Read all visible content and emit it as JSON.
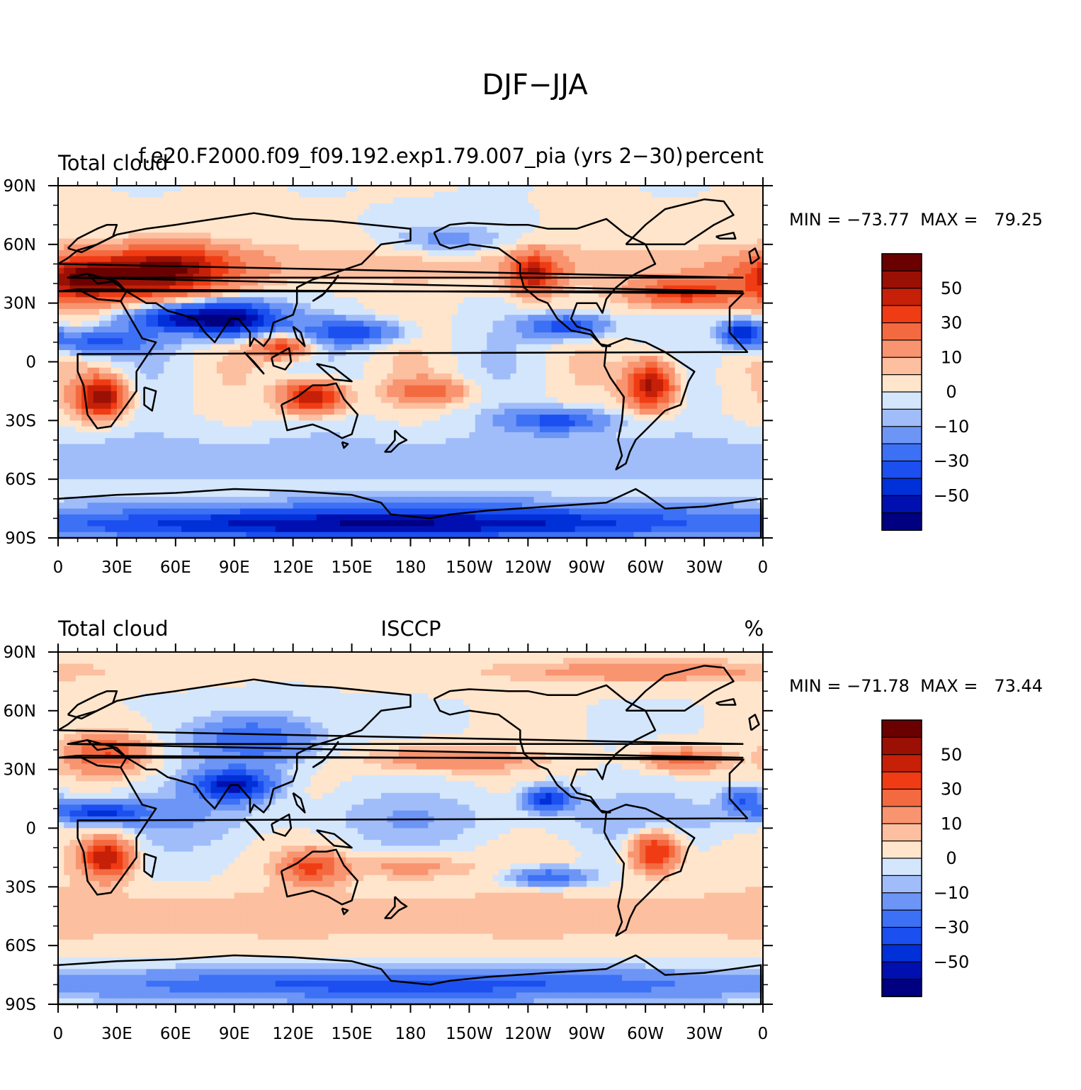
{
  "figure": {
    "title": "DJF−JJA"
  },
  "colorbar": {
    "colors": [
      "#000080",
      "#0010b0",
      "#0030d8",
      "#1c4ff0",
      "#3c70f5",
      "#6c95f6",
      "#a0bdfa",
      "#d4e6fc",
      "#ffe5cc",
      "#fcbf9f",
      "#f89470",
      "#f46a40",
      "#f03c14",
      "#c62008",
      "#9a1004",
      "#6b0000"
    ],
    "tick_labels": [
      "50",
      "30",
      "10",
      "0",
      "−10",
      "−30",
      "−50"
    ]
  },
  "chart_data": [
    {
      "type": "heatmap",
      "title_left": "Total cloud",
      "title_center": "f.e20.F2000.f09_f09.192.exp1.79.007_pia (yrs 2−30)",
      "title_right": "percent",
      "stats_text": "MIN = −73.77  MAX =   79.25",
      "min": -73.77,
      "max": 79.25,
      "xticks": [
        "0",
        "30E",
        "60E",
        "90E",
        "120E",
        "150E",
        "180",
        "150W",
        "120W",
        "90W",
        "60W",
        "30W",
        "0"
      ],
      "yticks": [
        "90N",
        "60N",
        "30N",
        "0",
        "30S",
        "60S",
        "90S"
      ],
      "xlim": [
        0,
        360
      ],
      "ylim": [
        -90,
        90
      ],
      "contour_levels": [
        -60,
        -50,
        -40,
        -30,
        -20,
        -10,
        -5,
        0,
        5,
        10,
        20,
        30,
        40,
        50,
        60
      ],
      "anomalies": [
        {
          "lon": 40,
          "lat": 42,
          "value": 45,
          "width": 40,
          "height": 12
        },
        {
          "lon": 10,
          "lat": 42,
          "value": 35,
          "width": 18,
          "height": 10
        },
        {
          "lon": 60,
          "lat": 50,
          "value": 30,
          "width": 30,
          "height": 10
        },
        {
          "lon": 90,
          "lat": 22,
          "value": -60,
          "width": 25,
          "height": 9
        },
        {
          "lon": 60,
          "lat": 22,
          "value": -40,
          "width": 25,
          "height": 7
        },
        {
          "lon": 20,
          "lat": 10,
          "value": -35,
          "width": 25,
          "height": 6
        },
        {
          "lon": 22,
          "lat": -18,
          "value": 60,
          "width": 12,
          "height": 10
        },
        {
          "lon": 130,
          "lat": -18,
          "value": 55,
          "width": 15,
          "height": 8
        },
        {
          "lon": 150,
          "lat": 15,
          "value": -35,
          "width": 25,
          "height": 6
        },
        {
          "lon": 243,
          "lat": 45,
          "value": 45,
          "width": 12,
          "height": 10
        },
        {
          "lon": 320,
          "lat": 35,
          "value": 40,
          "width": 25,
          "height": 7
        },
        {
          "lon": 303,
          "lat": -12,
          "value": 55,
          "width": 12,
          "height": 12
        },
        {
          "lon": 260,
          "lat": 18,
          "value": -40,
          "width": 20,
          "height": 6
        },
        {
          "lon": 255,
          "lat": -30,
          "value": -35,
          "width": 25,
          "height": 6
        },
        {
          "lon": 190,
          "lat": -15,
          "value": 25,
          "width": 20,
          "height": 6
        },
        {
          "lon": 180,
          "lat": -80,
          "value": -40,
          "width": 180,
          "height": 8
        },
        {
          "lon": 150,
          "lat": -85,
          "value": -30,
          "width": 180,
          "height": 6
        },
        {
          "lon": 200,
          "lat": 62,
          "value": -15,
          "width": 30,
          "height": 8
        },
        {
          "lon": 350,
          "lat": 15,
          "value": -50,
          "width": 10,
          "height": 6
        },
        {
          "lon": 115,
          "lat": 8,
          "value": 35,
          "width": 15,
          "height": 6
        }
      ]
    },
    {
      "type": "heatmap",
      "title_left": "Total cloud",
      "title_center": "ISCCP",
      "title_right": "%",
      "stats_text": "MIN = −71.78  MAX =   73.44",
      "min": -71.78,
      "max": 73.44,
      "xticks": [
        "0",
        "30E",
        "60E",
        "90E",
        "120E",
        "150E",
        "180",
        "150W",
        "120W",
        "90W",
        "60W",
        "30W",
        "0"
      ],
      "yticks": [
        "90N",
        "60N",
        "30N",
        "0",
        "30S",
        "60S",
        "90S"
      ],
      "xlim": [
        0,
        360
      ],
      "ylim": [
        -90,
        90
      ],
      "contour_levels": [
        -60,
        -50,
        -40,
        -30,
        -20,
        -10,
        -5,
        0,
        5,
        10,
        20,
        30,
        40,
        50,
        60
      ],
      "anomalies": [
        {
          "lon": 25,
          "lat": 38,
          "value": 30,
          "width": 20,
          "height": 10
        },
        {
          "lon": 90,
          "lat": 22,
          "value": -55,
          "width": 20,
          "height": 8
        },
        {
          "lon": 100,
          "lat": 45,
          "value": -30,
          "width": 30,
          "height": 12
        },
        {
          "lon": 20,
          "lat": 8,
          "value": -40,
          "width": 25,
          "height": 5
        },
        {
          "lon": 25,
          "lat": -15,
          "value": 50,
          "width": 12,
          "height": 10
        },
        {
          "lon": 130,
          "lat": -20,
          "value": 30,
          "width": 15,
          "height": 8
        },
        {
          "lon": 200,
          "lat": 35,
          "value": 20,
          "width": 40,
          "height": 6
        },
        {
          "lon": 305,
          "lat": -12,
          "value": 45,
          "width": 12,
          "height": 10
        },
        {
          "lon": 320,
          "lat": 35,
          "value": 25,
          "width": 20,
          "height": 6
        },
        {
          "lon": 250,
          "lat": 15,
          "value": -45,
          "width": 12,
          "height": 6
        },
        {
          "lon": 180,
          "lat": -80,
          "value": -35,
          "width": 180,
          "height": 8
        },
        {
          "lon": 300,
          "lat": 80,
          "value": 15,
          "width": 80,
          "height": 6
        },
        {
          "lon": 180,
          "lat": -20,
          "value": 15,
          "width": 30,
          "height": 6
        },
        {
          "lon": 250,
          "lat": -25,
          "value": -30,
          "width": 20,
          "height": 5
        },
        {
          "lon": 350,
          "lat": 15,
          "value": -30,
          "width": 10,
          "height": 6
        }
      ]
    }
  ]
}
